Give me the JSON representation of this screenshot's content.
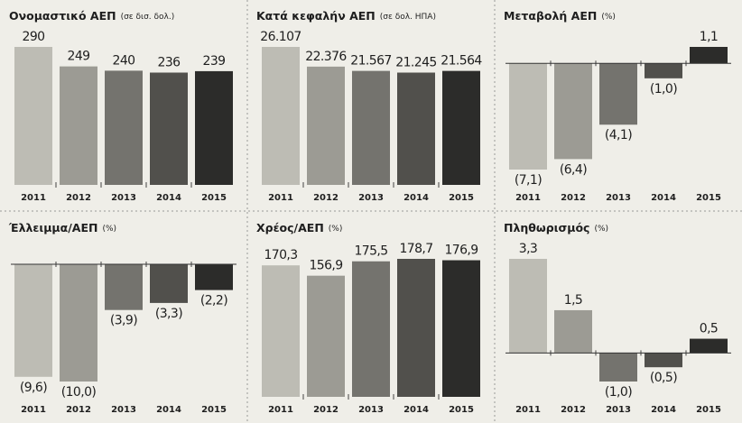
{
  "chart_data": [
    {
      "type": "bar",
      "title": "Ονομαστικό ΑΕΠ",
      "subtitle": "(σε δισ. δολ.)",
      "categories": [
        "2011",
        "2012",
        "2013",
        "2014",
        "2015"
      ],
      "values": [
        290,
        249,
        240,
        236,
        239
      ],
      "colors": [
        "#bdbcb4",
        "#9c9b94",
        "#74736e",
        "#51504c",
        "#2c2c2a"
      ]
    },
    {
      "type": "bar",
      "title": "Κατά κεφαλήν ΑΕΠ",
      "subtitle": "(σε δολ. ΗΠΑ)",
      "categories": [
        "2011",
        "2012",
        "2013",
        "2014",
        "2015"
      ],
      "values": [
        26107,
        22376,
        21567,
        21245,
        21564
      ],
      "value_labels": [
        "26.107",
        "22.376",
        "21.567",
        "21.245",
        "21.564"
      ],
      "colors": [
        "#bdbcb4",
        "#9c9b94",
        "#74736e",
        "#51504c",
        "#2c2c2a"
      ]
    },
    {
      "type": "bar",
      "title": "Μεταβολή ΑΕΠ",
      "subtitle": "(%)",
      "categories": [
        "2011",
        "2012",
        "2013",
        "2014",
        "2015"
      ],
      "values": [
        -7.1,
        -6.4,
        -4.1,
        -1.0,
        1.1
      ],
      "value_labels": [
        "(7,1)",
        "(6,4)",
        "(4,1)",
        "(1,0)",
        "1,1"
      ],
      "colors": [
        "#bdbcb4",
        "#9c9b94",
        "#74736e",
        "#51504c",
        "#2c2c2a"
      ]
    },
    {
      "type": "bar",
      "title": "Έλλειμμα/ΑΕΠ",
      "subtitle": "(%)",
      "categories": [
        "2011",
        "2012",
        "2013",
        "2014",
        "2015"
      ],
      "values": [
        -9.6,
        -10.0,
        -3.9,
        -3.3,
        -2.2
      ],
      "value_labels": [
        "(9,6)",
        "(10,0)",
        "(3,9)",
        "(3,3)",
        "(2,2)"
      ],
      "colors": [
        "#bdbcb4",
        "#9c9b94",
        "#74736e",
        "#51504c",
        "#2c2c2a"
      ]
    },
    {
      "type": "bar",
      "title": "Χρέος/ΑΕΠ",
      "subtitle": "(%)",
      "categories": [
        "2011",
        "2012",
        "2013",
        "2014",
        "2015"
      ],
      "values": [
        170.3,
        156.9,
        175.5,
        178.7,
        176.9
      ],
      "value_labels": [
        "170,3",
        "156,9",
        "175,5",
        "178,7",
        "176,9"
      ],
      "colors": [
        "#bdbcb4",
        "#9c9b94",
        "#74736e",
        "#51504c",
        "#2c2c2a"
      ]
    },
    {
      "type": "bar",
      "title": "Πληθωρισμός",
      "subtitle": "(%)",
      "categories": [
        "2011",
        "2012",
        "2013",
        "2014",
        "2015"
      ],
      "values": [
        3.3,
        1.5,
        -1.0,
        -0.5,
        0.5
      ],
      "value_labels": [
        "3,3",
        "1,5",
        "(1,0)",
        "(0,5)",
        "0,5"
      ],
      "colors": [
        "#bdbcb4",
        "#9c9b94",
        "#74736e",
        "#51504c",
        "#2c2c2a"
      ]
    }
  ]
}
